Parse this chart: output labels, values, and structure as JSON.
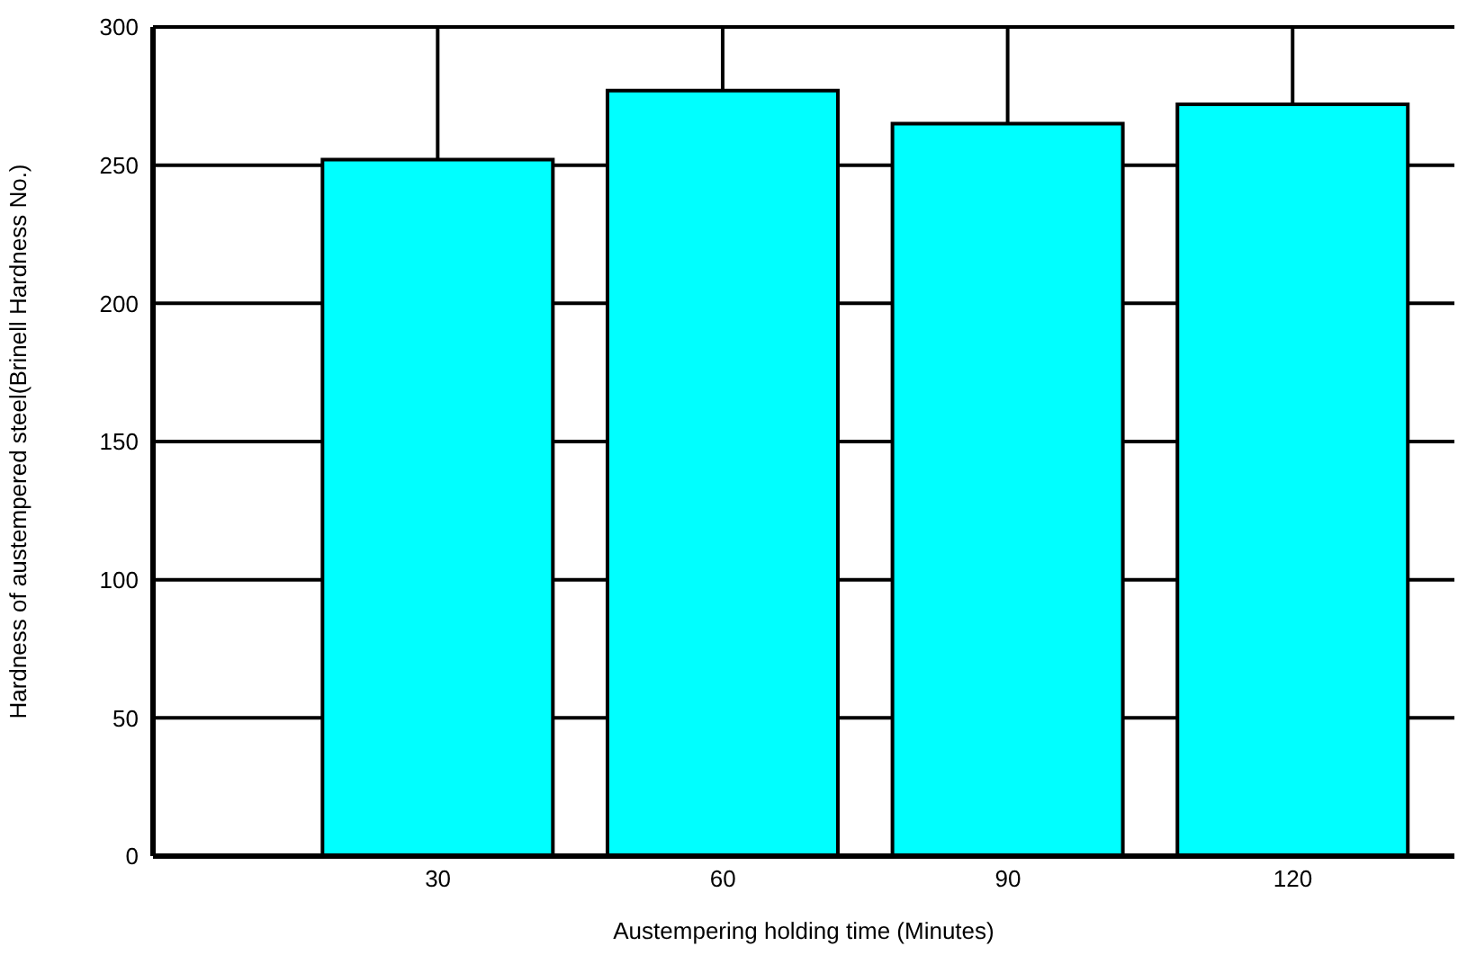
{
  "chart_data": {
    "type": "bar",
    "xlabel": "Austempering holding time (Minutes)",
    "ylabel": "Hardness of austempered steel(Brinell Hardness No.)",
    "x": [
      30,
      60,
      90,
      120
    ],
    "values": [
      252,
      277,
      265,
      272
    ],
    "errors": [
      [
        252,
        300
      ],
      [
        277,
        300
      ],
      [
        265,
        300
      ],
      [
        272,
        300
      ]
    ],
    "color": "#00ffff",
    "xlim": [
      0,
      137
    ],
    "xticks": [
      30,
      60,
      90,
      120
    ],
    "ylim": [
      0,
      300
    ],
    "yticks": [
      0,
      50,
      100,
      150,
      200,
      250,
      300
    ],
    "grid": "y"
  }
}
